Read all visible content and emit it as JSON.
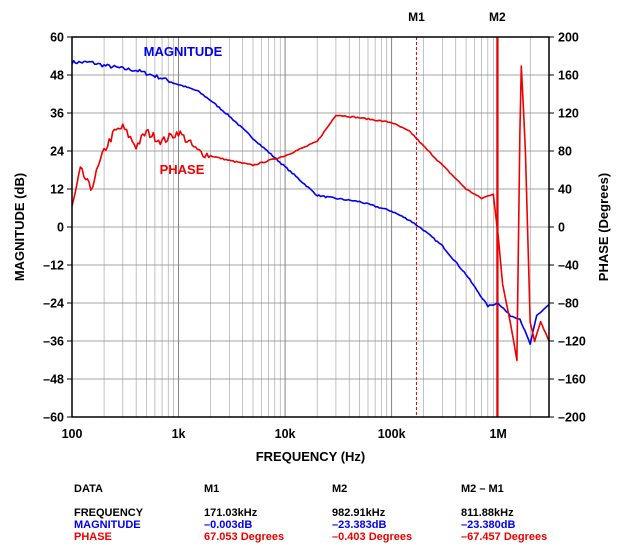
{
  "chart_data": {
    "type": "line",
    "title": "",
    "xlabel": "FREQUENCY (Hz)",
    "ylabel_left": "MAGNITUDE (dB)",
    "ylabel_right": "PHASE (Degrees)",
    "x_scale": "log",
    "xlim": [
      100,
      3000000
    ],
    "x_ticks": [
      100,
      1000,
      10000,
      100000,
      1000000
    ],
    "x_tick_labels": [
      "100",
      "1k",
      "10k",
      "100k",
      "1M"
    ],
    "ylim_left": [
      -60,
      60
    ],
    "y_left_ticks": [
      60,
      48,
      36,
      24,
      12,
      0,
      -12,
      -24,
      -36,
      -48,
      -60
    ],
    "y_left_tick_labels": [
      "60",
      "48",
      "36",
      "24",
      "12",
      "0",
      "–12",
      "–24",
      "–36",
      "–48",
      "–60"
    ],
    "ylim_right": [
      -200,
      200
    ],
    "y_right_ticks": [
      200,
      160,
      120,
      80,
      40,
      0,
      -40,
      -80,
      -120,
      -160,
      -200
    ],
    "y_right_tick_labels": [
      "200",
      "160",
      "120",
      "80",
      "40",
      "0",
      "–40",
      "–80",
      "–120",
      "–160",
      "–200"
    ],
    "grid": true,
    "markers": [
      {
        "label": "M1",
        "x": 171030
      },
      {
        "label": "M2",
        "x": 982910
      }
    ],
    "series": [
      {
        "name": "MAGNITUDE",
        "axis": "left",
        "color": "#0000ee",
        "points": [
          [
            100,
            52
          ],
          [
            150,
            52
          ],
          [
            200,
            51
          ],
          [
            250,
            50.5
          ],
          [
            300,
            50
          ],
          [
            400,
            49.5
          ],
          [
            500,
            48.5
          ],
          [
            700,
            47
          ],
          [
            1000,
            45
          ],
          [
            1500,
            43
          ],
          [
            2000,
            40
          ],
          [
            3000,
            35
          ],
          [
            5000,
            28
          ],
          [
            10000,
            19
          ],
          [
            20000,
            10
          ],
          [
            30000,
            9
          ],
          [
            50000,
            8
          ],
          [
            100000,
            5
          ],
          [
            150000,
            2
          ],
          [
            200000,
            -1
          ],
          [
            300000,
            -6
          ],
          [
            500000,
            -15
          ],
          [
            800000,
            -25
          ],
          [
            1000000,
            -24
          ],
          [
            1300000,
            -28
          ],
          [
            1600000,
            -29
          ],
          [
            2000000,
            -37
          ],
          [
            2300000,
            -28
          ],
          [
            3000000,
            -24.5
          ]
        ]
      },
      {
        "name": "PHASE",
        "axis": "right",
        "color": "#ee0000",
        "points": [
          [
            100,
            20
          ],
          [
            120,
            60
          ],
          [
            150,
            40
          ],
          [
            200,
            80
          ],
          [
            250,
            100
          ],
          [
            300,
            105
          ],
          [
            400,
            85
          ],
          [
            500,
            100
          ],
          [
            700,
            90
          ],
          [
            1000,
            100
          ],
          [
            1500,
            80
          ],
          [
            2000,
            75
          ],
          [
            3000,
            70
          ],
          [
            5000,
            65
          ],
          [
            10000,
            75
          ],
          [
            20000,
            90
          ],
          [
            25000,
            105
          ],
          [
            30000,
            118
          ],
          [
            50000,
            115
          ],
          [
            100000,
            110
          ],
          [
            150000,
            100
          ],
          [
            200000,
            85
          ],
          [
            300000,
            65
          ],
          [
            500000,
            40
          ],
          [
            700000,
            30
          ],
          [
            900000,
            35
          ],
          [
            1000000,
            -10
          ],
          [
            1100000,
            -60
          ],
          [
            1300000,
            -100
          ],
          [
            1500000,
            -140
          ],
          [
            1600000,
            100
          ],
          [
            1650000,
            170
          ],
          [
            1800000,
            80
          ],
          [
            2000000,
            -100
          ],
          [
            2200000,
            -120
          ],
          [
            2500000,
            -100
          ],
          [
            3000000,
            -120
          ]
        ]
      }
    ],
    "annotations": [
      "MAGNITUDE",
      "PHASE"
    ]
  },
  "table": {
    "headers": [
      "DATA",
      "M1",
      "M2",
      "M2 – M1"
    ],
    "rows": [
      {
        "label": "FREQUENCY",
        "color": "#000000",
        "values": [
          "171.03kHz",
          "982.91kHz",
          "811.88kHz"
        ]
      },
      {
        "label": "MAGNITUDE",
        "color": "#0000ee",
        "values": [
          "–0.003dB",
          "–23.383dB",
          "–23.380dB"
        ]
      },
      {
        "label": "PHASE",
        "color": "#ee0000",
        "values": [
          "67.053 Degrees",
          "–0.403 Degrees",
          "–67.457 Degrees"
        ]
      }
    ]
  }
}
